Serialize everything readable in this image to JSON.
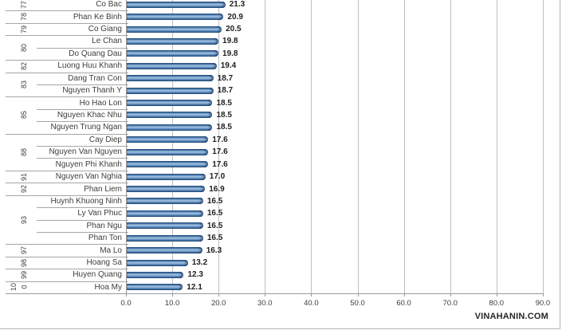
{
  "watermark": {
    "text": "VINAHANIN.COM"
  },
  "chart_data": {
    "type": "bar",
    "orientation": "horizontal",
    "title": "",
    "xlabel": "",
    "ylabel": "",
    "xlim": [
      0,
      90
    ],
    "x_tick_labels": [
      "0.0",
      "10.0",
      "20.0",
      "30.0",
      "40.0",
      "50.0",
      "60.0",
      "70.0",
      "80.0",
      "90.0"
    ],
    "grid": "vertical",
    "legend": "none",
    "bar_color": "#4f81bd",
    "gridline_color": "#bfbfbf",
    "categories_axis": "two-level (rank group + street name)",
    "rows": [
      {
        "rank": "77",
        "name": "Co Bac",
        "value": 21.3
      },
      {
        "rank": "78",
        "name": "Phan Ke Binh",
        "value": 20.9
      },
      {
        "rank": "79",
        "name": "Co Giang",
        "value": 20.5
      },
      {
        "rank": "80",
        "name": "Le Chan",
        "value": 19.8
      },
      {
        "rank": "80",
        "name": "Do Quang Dau",
        "value": 19.8
      },
      {
        "rank": "82",
        "name": "Luong Huu Khanh",
        "value": 19.4
      },
      {
        "rank": "83",
        "name": "Dang Tran Con",
        "value": 18.7
      },
      {
        "rank": "83",
        "name": "Nguyen Thanh Y",
        "value": 18.7
      },
      {
        "rank": "85",
        "name": "Ho Hao Lon",
        "value": 18.5
      },
      {
        "rank": "85",
        "name": "Nguyen Khac Nhu",
        "value": 18.5
      },
      {
        "rank": "85",
        "name": "Nguyen Trung Ngan",
        "value": 18.5
      },
      {
        "rank": "88",
        "name": "Cay Diep",
        "value": 17.6
      },
      {
        "rank": "88",
        "name": "Nguyen Van Nguyen",
        "value": 17.6
      },
      {
        "rank": "88",
        "name": "Nguyen Phi Khanh",
        "value": 17.6
      },
      {
        "rank": "91",
        "name": "Nguyen Van Nghia",
        "value": 17.0
      },
      {
        "rank": "92",
        "name": "Phan Liem",
        "value": 16.9
      },
      {
        "rank": "93",
        "name": "Huynh Khuong Ninh",
        "value": 16.5
      },
      {
        "rank": "93",
        "name": "Ly Van Phuc",
        "value": 16.5
      },
      {
        "rank": "93",
        "name": "Phan Ngu",
        "value": 16.5
      },
      {
        "rank": "93",
        "name": "Phan Ton",
        "value": 16.5
      },
      {
        "rank": "97",
        "name": "Ma Lo",
        "value": 16.3
      },
      {
        "rank": "98",
        "name": "Hoang Sa",
        "value": 13.2
      },
      {
        "rank": "99",
        "name": "Huyen Quang",
        "value": 12.3
      },
      {
        "rank": "100",
        "name": "Hoa My",
        "value": 12.1
      }
    ]
  }
}
